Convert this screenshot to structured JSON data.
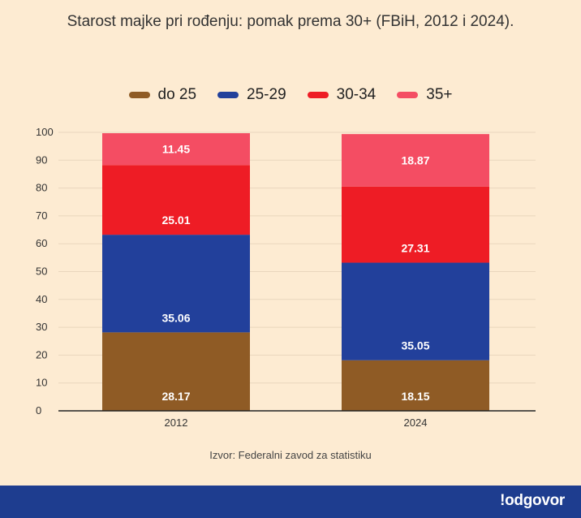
{
  "chart_data": {
    "type": "bar",
    "stacked": true,
    "title": "Starost majke pri rođenju: pomak prema 30+ (FBiH, 2012 i 2024).",
    "categories": [
      "2012",
      "2024"
    ],
    "series": [
      {
        "name": "do 25",
        "values": [
          28.17,
          18.15
        ],
        "color": "#8f5b25"
      },
      {
        "name": "25-29",
        "values": [
          35.06,
          35.05
        ],
        "color": "#22409b"
      },
      {
        "name": "30-34",
        "values": [
          25.01,
          27.31
        ],
        "color": "#ee1c25"
      },
      {
        "name": "35+",
        "values": [
          11.45,
          18.87
        ],
        "color": "#f44d63"
      }
    ],
    "ylim": [
      0,
      100
    ],
    "yticks": [
      0,
      10,
      20,
      30,
      40,
      50,
      60,
      70,
      80,
      90,
      100
    ],
    "grid": true,
    "legend_position": "top"
  },
  "source": "Izvor: Federalni zavod za statistiku",
  "brand": "!odgovor",
  "colors": {
    "background": "#fdebd2",
    "footer": "#1e3d8f"
  }
}
